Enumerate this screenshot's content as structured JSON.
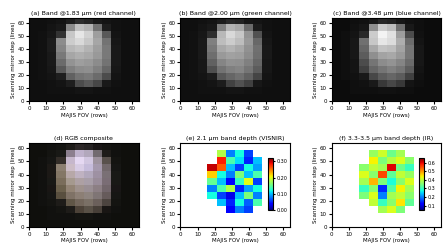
{
  "chart_data": [
    {
      "type": "image",
      "title": "(a) Band @1.83 μm (red channel)",
      "x_label": "MAJIS FOV (rows)",
      "y_label": "Scanning mirror step (lines)",
      "xlim": [
        0,
        64
      ],
      "ylim": [
        0,
        64
      ],
      "xticks": [
        0,
        10,
        20,
        30,
        40,
        50,
        60
      ],
      "yticks": [
        0,
        10,
        20,
        30,
        40,
        50,
        60
      ],
      "cells": [
        [
          0.06,
          0.06,
          0.06,
          0.06,
          0.06,
          0.06,
          0.06,
          0.06,
          0.06,
          0.06,
          0.06,
          0.06
        ],
        [
          0.06,
          0.06,
          0.07,
          0.07,
          0.07,
          0.08,
          0.08,
          0.07,
          0.07,
          0.06,
          0.06,
          0.06
        ],
        [
          0.06,
          0.06,
          0.07,
          0.08,
          0.12,
          0.3,
          0.35,
          0.28,
          0.1,
          0.07,
          0.06,
          0.06
        ],
        [
          0.06,
          0.07,
          0.08,
          0.12,
          0.38,
          0.45,
          0.48,
          0.42,
          0.3,
          0.08,
          0.06,
          0.06
        ],
        [
          0.06,
          0.07,
          0.09,
          0.35,
          0.5,
          0.55,
          0.56,
          0.5,
          0.4,
          0.09,
          0.06,
          0.06
        ],
        [
          0.06,
          0.07,
          0.1,
          0.42,
          0.58,
          0.62,
          0.6,
          0.55,
          0.45,
          0.1,
          0.06,
          0.06
        ],
        [
          0.06,
          0.07,
          0.1,
          0.48,
          0.65,
          0.68,
          0.66,
          0.6,
          0.48,
          0.1,
          0.06,
          0.06
        ],
        [
          0.06,
          0.07,
          0.11,
          0.52,
          0.72,
          0.75,
          0.7,
          0.62,
          0.48,
          0.1,
          0.06,
          0.06
        ],
        [
          0.06,
          0.07,
          0.11,
          0.55,
          0.8,
          0.85,
          0.78,
          0.65,
          0.45,
          0.09,
          0.06,
          0.06
        ],
        [
          0.06,
          0.07,
          0.09,
          0.2,
          0.78,
          0.9,
          0.82,
          0.62,
          0.35,
          0.08,
          0.06,
          0.06
        ],
        [
          0.06,
          0.06,
          0.08,
          0.1,
          0.55,
          0.75,
          0.7,
          0.45,
          0.12,
          0.07,
          0.06,
          0.06
        ],
        [
          0.06,
          0.06,
          0.07,
          0.08,
          0.12,
          0.18,
          0.15,
          0.1,
          0.08,
          0.07,
          0.06,
          0.06
        ]
      ]
    },
    {
      "type": "image",
      "title": "(b) Band @2.00 μm (green channel)",
      "x_label": "MAJIS FOV (rows)",
      "y_label": "Scanning mirror step (lines)",
      "xlim": [
        0,
        64
      ],
      "ylim": [
        0,
        64
      ],
      "xticks": [
        0,
        10,
        20,
        30,
        40,
        50,
        60
      ],
      "yticks": [
        0,
        10,
        20,
        30,
        40,
        50,
        60
      ],
      "cells": [
        [
          0.06,
          0.06,
          0.06,
          0.06,
          0.06,
          0.06,
          0.06,
          0.06,
          0.06,
          0.06,
          0.06,
          0.06
        ],
        [
          0.06,
          0.06,
          0.07,
          0.07,
          0.07,
          0.08,
          0.08,
          0.07,
          0.07,
          0.06,
          0.06,
          0.06
        ],
        [
          0.06,
          0.06,
          0.07,
          0.08,
          0.11,
          0.26,
          0.32,
          0.25,
          0.09,
          0.07,
          0.06,
          0.06
        ],
        [
          0.06,
          0.07,
          0.08,
          0.11,
          0.34,
          0.4,
          0.44,
          0.38,
          0.27,
          0.08,
          0.06,
          0.06
        ],
        [
          0.06,
          0.07,
          0.09,
          0.31,
          0.45,
          0.5,
          0.52,
          0.46,
          0.36,
          0.09,
          0.06,
          0.06
        ],
        [
          0.06,
          0.07,
          0.09,
          0.38,
          0.52,
          0.57,
          0.56,
          0.5,
          0.4,
          0.09,
          0.06,
          0.06
        ],
        [
          0.06,
          0.07,
          0.1,
          0.43,
          0.6,
          0.63,
          0.62,
          0.55,
          0.43,
          0.1,
          0.06,
          0.06
        ],
        [
          0.06,
          0.07,
          0.1,
          0.47,
          0.66,
          0.7,
          0.66,
          0.57,
          0.44,
          0.1,
          0.06,
          0.06
        ],
        [
          0.06,
          0.07,
          0.1,
          0.5,
          0.74,
          0.8,
          0.74,
          0.6,
          0.41,
          0.09,
          0.06,
          0.06
        ],
        [
          0.06,
          0.07,
          0.09,
          0.18,
          0.72,
          0.85,
          0.78,
          0.58,
          0.32,
          0.08,
          0.06,
          0.06
        ],
        [
          0.06,
          0.06,
          0.08,
          0.1,
          0.5,
          0.7,
          0.66,
          0.42,
          0.11,
          0.07,
          0.06,
          0.06
        ],
        [
          0.06,
          0.06,
          0.07,
          0.08,
          0.11,
          0.16,
          0.14,
          0.09,
          0.08,
          0.07,
          0.06,
          0.06
        ]
      ]
    },
    {
      "type": "image",
      "title": "(c) Band @3.48 μm (blue channel)",
      "x_label": "MAJIS FOV (rows)",
      "y_label": "Scanning mirror step (lines)",
      "xlim": [
        0,
        64
      ],
      "ylim": [
        0,
        64
      ],
      "xticks": [
        0,
        10,
        20,
        30,
        40,
        50,
        60
      ],
      "yticks": [
        0,
        10,
        20,
        30,
        40,
        50,
        60
      ],
      "cells": [
        [
          0.05,
          0.05,
          0.05,
          0.05,
          0.05,
          0.05,
          0.05,
          0.05,
          0.05,
          0.05,
          0.05,
          0.05
        ],
        [
          0.05,
          0.05,
          0.06,
          0.06,
          0.06,
          0.07,
          0.07,
          0.06,
          0.06,
          0.05,
          0.05,
          0.05
        ],
        [
          0.05,
          0.05,
          0.06,
          0.07,
          0.1,
          0.22,
          0.28,
          0.22,
          0.08,
          0.06,
          0.05,
          0.05
        ],
        [
          0.05,
          0.06,
          0.07,
          0.1,
          0.28,
          0.36,
          0.4,
          0.36,
          0.25,
          0.07,
          0.05,
          0.05
        ],
        [
          0.05,
          0.06,
          0.08,
          0.25,
          0.4,
          0.46,
          0.5,
          0.46,
          0.36,
          0.08,
          0.05,
          0.05
        ],
        [
          0.05,
          0.06,
          0.08,
          0.3,
          0.46,
          0.55,
          0.58,
          0.52,
          0.42,
          0.09,
          0.05,
          0.05
        ],
        [
          0.05,
          0.06,
          0.09,
          0.36,
          0.56,
          0.64,
          0.66,
          0.6,
          0.46,
          0.09,
          0.05,
          0.05
        ],
        [
          0.05,
          0.06,
          0.09,
          0.4,
          0.66,
          0.76,
          0.74,
          0.64,
          0.46,
          0.09,
          0.05,
          0.05
        ],
        [
          0.05,
          0.06,
          0.09,
          0.44,
          0.78,
          0.9,
          0.86,
          0.68,
          0.42,
          0.08,
          0.05,
          0.05
        ],
        [
          0.05,
          0.06,
          0.08,
          0.16,
          0.8,
          0.95,
          0.88,
          0.62,
          0.3,
          0.07,
          0.05,
          0.05
        ],
        [
          0.05,
          0.05,
          0.07,
          0.09,
          0.56,
          0.8,
          0.74,
          0.44,
          0.1,
          0.06,
          0.05,
          0.05
        ],
        [
          0.05,
          0.05,
          0.06,
          0.07,
          0.1,
          0.16,
          0.14,
          0.09,
          0.07,
          0.06,
          0.05,
          0.05
        ]
      ]
    },
    {
      "type": "rgb",
      "title": "(d) RGB composite",
      "x_label": "MAJIS FOV (rows)",
      "y_label": "Scanning mirror step (lines)",
      "xlim": [
        0,
        64
      ],
      "ylim": [
        0,
        64
      ],
      "xticks": [
        0,
        10,
        20,
        30,
        40,
        50,
        60
      ],
      "yticks": [
        0,
        10,
        20,
        30,
        40,
        50,
        60
      ]
    },
    {
      "type": "heatmap",
      "title": "(e) 2.1 μm band depth (VISNIR)",
      "x_label": "MAJIS FOV (rows)",
      "y_label": "Scanning mirror step (lines)",
      "xlim": [
        0,
        64
      ],
      "ylim": [
        0,
        64
      ],
      "xticks": [
        0,
        10,
        20,
        30,
        40,
        50,
        60
      ],
      "yticks": [
        0,
        10,
        20,
        30,
        40,
        50,
        60
      ],
      "color_range": [
        0,
        0.32
      ],
      "color_ticks": [
        {
          "value": 0,
          "label": "0.00"
        },
        {
          "value": 0.1,
          "label": "0.10"
        },
        {
          "value": 0.2,
          "label": "0.20"
        },
        {
          "value": 0.3,
          "label": "0.30"
        }
      ],
      "cells": [
        [
          null,
          null,
          null,
          null,
          null,
          null,
          null,
          null,
          null,
          null,
          null,
          null
        ],
        [
          null,
          null,
          null,
          null,
          null,
          null,
          null,
          null,
          null,
          null,
          null,
          null
        ],
        [
          null,
          null,
          null,
          null,
          null,
          0.04,
          0.08,
          0.06,
          null,
          null,
          null,
          null
        ],
        [
          null,
          null,
          null,
          null,
          0.1,
          0.05,
          0.12,
          0.07,
          0.14,
          null,
          null,
          null
        ],
        [
          null,
          null,
          null,
          0.12,
          0.06,
          0.03,
          0.1,
          0.16,
          0.08,
          null,
          null,
          null
        ],
        [
          null,
          null,
          null,
          0.08,
          0.14,
          0.18,
          0.05,
          0.09,
          0.12,
          null,
          null,
          null
        ],
        [
          null,
          null,
          null,
          0.15,
          0.1,
          0.04,
          0.13,
          0.2,
          0.06,
          null,
          null,
          null
        ],
        [
          null,
          null,
          null,
          0.22,
          0.12,
          0.08,
          0.16,
          0.1,
          0.14,
          null,
          null,
          null
        ],
        [
          null,
          null,
          null,
          0.3,
          0.26,
          0.1,
          0.06,
          0.12,
          0.09,
          null,
          null,
          null
        ],
        [
          null,
          null,
          null,
          null,
          0.28,
          0.14,
          0.11,
          0.05,
          0.1,
          null,
          null,
          null
        ],
        [
          null,
          null,
          null,
          null,
          0.18,
          0.08,
          0.12,
          0.06,
          null,
          null,
          null,
          null
        ],
        [
          null,
          null,
          null,
          null,
          null,
          null,
          null,
          null,
          null,
          null,
          null,
          null
        ]
      ]
    },
    {
      "type": "heatmap",
      "title": "(f) 3.3-3.5 μm band depth (IR)",
      "x_label": "MAJIS FOV (rows)",
      "y_label": "Scanning mirror step (lines)",
      "xlim": [
        0,
        64
      ],
      "ylim": [
        0,
        64
      ],
      "xticks": [
        0,
        10,
        20,
        30,
        40,
        50,
        60
      ],
      "yticks": [
        0,
        10,
        20,
        30,
        40,
        50,
        60
      ],
      "color_range": [
        0.05,
        0.65
      ],
      "color_ticks": [
        0.1,
        0.2,
        0.3,
        0.4,
        0.5,
        0.6
      ],
      "cells": [
        [
          null,
          null,
          null,
          null,
          null,
          null,
          null,
          null,
          null,
          null,
          null,
          null
        ],
        [
          null,
          null,
          null,
          null,
          null,
          null,
          null,
          null,
          null,
          null,
          null,
          null
        ],
        [
          null,
          null,
          null,
          null,
          null,
          0.38,
          0.42,
          0.35,
          null,
          null,
          null,
          null
        ],
        [
          null,
          null,
          null,
          null,
          0.4,
          0.3,
          0.36,
          0.45,
          0.33,
          null,
          null,
          null
        ],
        [
          null,
          null,
          null,
          0.35,
          0.42,
          0.2,
          0.38,
          0.4,
          0.36,
          null,
          null,
          null
        ],
        [
          null,
          null,
          null,
          0.3,
          0.36,
          0.15,
          0.32,
          0.44,
          0.38,
          null,
          null,
          null
        ],
        [
          null,
          null,
          null,
          0.38,
          0.48,
          0.35,
          0.28,
          0.36,
          0.42,
          null,
          null,
          null
        ],
        [
          null,
          null,
          null,
          0.42,
          0.36,
          0.55,
          0.33,
          0.4,
          0.37,
          null,
          null,
          null
        ],
        [
          null,
          null,
          null,
          0.36,
          0.4,
          0.38,
          0.6,
          0.34,
          0.3,
          null,
          null,
          null
        ],
        [
          null,
          null,
          null,
          null,
          0.44,
          0.35,
          0.39,
          0.42,
          0.36,
          null,
          null,
          null
        ],
        [
          null,
          null,
          null,
          null,
          0.37,
          0.41,
          0.34,
          0.38,
          null,
          null,
          null,
          null
        ],
        [
          null,
          null,
          null,
          null,
          null,
          null,
          null,
          null,
          null,
          null,
          null,
          null
        ]
      ]
    }
  ]
}
